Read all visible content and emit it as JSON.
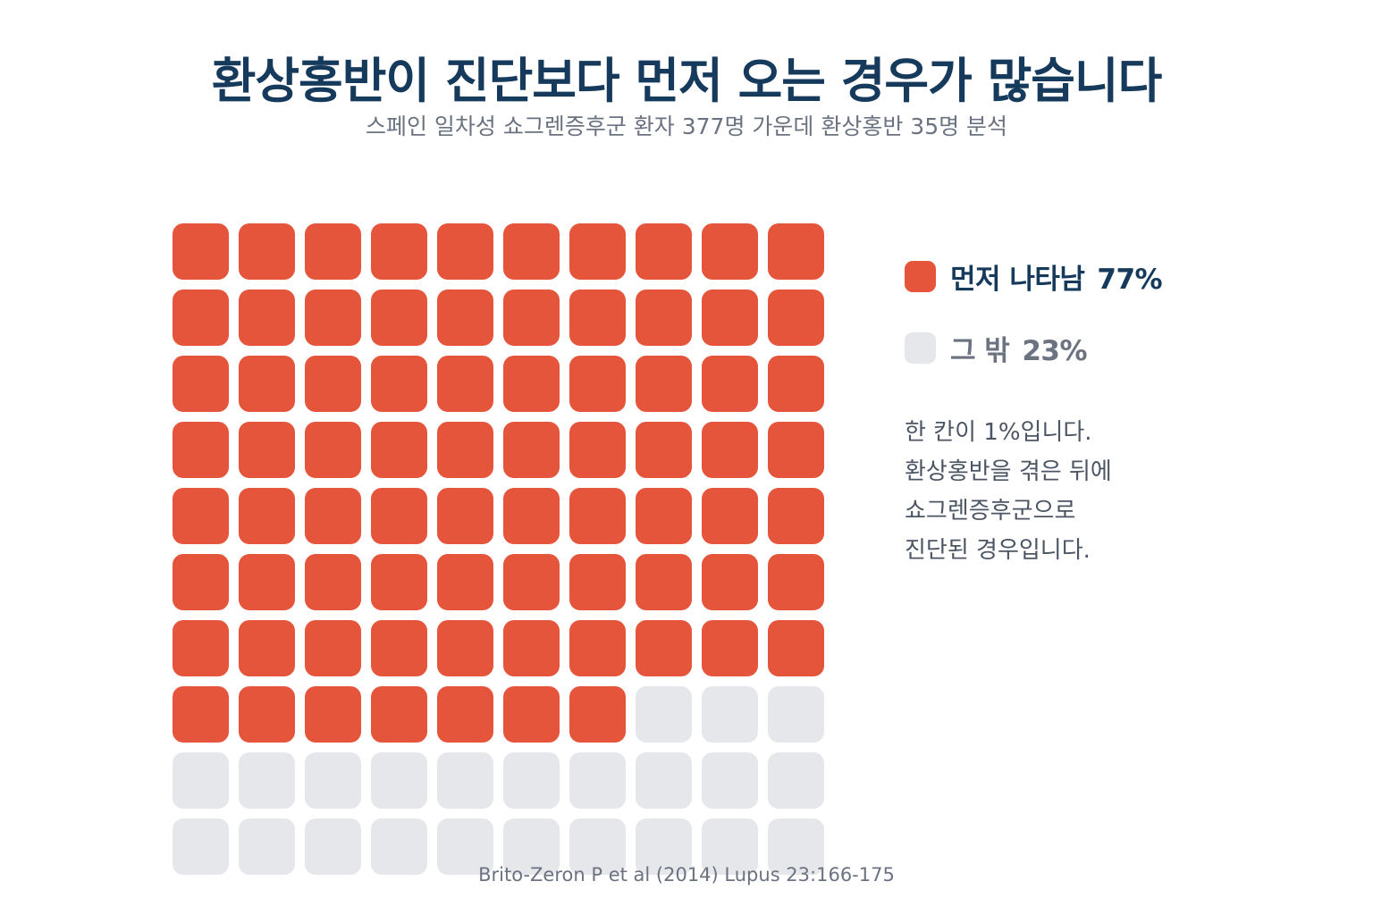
{
  "title": "환상홍반이 진단보다 먼저 오는 경우가 많습니다",
  "subtitle": "스페인 일차성 쇼그렌증후군 환자 377명 가운데 환상홍반 35명 분석",
  "colors": {
    "title": "#163a5c",
    "primary": "#e5553c",
    "secondary": "#e5e7eb",
    "secondary_text": "#6b7280",
    "text": "#4b5563"
  },
  "chart_data": {
    "type": "waffle",
    "grid": {
      "rows": 10,
      "cols": 10
    },
    "unit_percent": 1,
    "series": [
      {
        "name": "먼저 나타남",
        "value": 77,
        "value_label": "77%",
        "color": "#e5553c"
      },
      {
        "name": "그 밖",
        "value": 23,
        "value_label": "23%",
        "color": "#e5e7eb"
      }
    ]
  },
  "note_lines": [
    "한 칸이 1%입니다.",
    "환상홍반을 겪은 뒤에",
    "쇼그렌증후군으로",
    "진단된 경우입니다."
  ],
  "source": "Brito-Zeron P et al (2014) Lupus 23:166-175"
}
